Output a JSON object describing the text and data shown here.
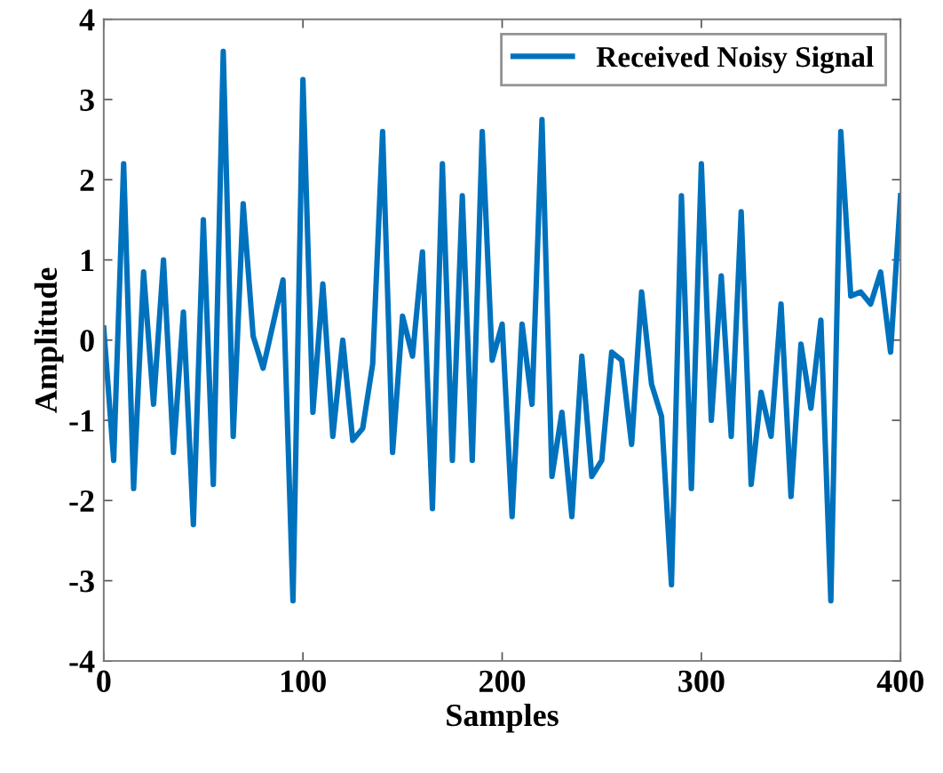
{
  "chart_data": {
    "type": "line",
    "xlabel": "Samples",
    "ylabel": "Amplitude",
    "x": [
      0,
      5,
      10,
      15,
      20,
      25,
      30,
      35,
      40,
      45,
      50,
      55,
      60,
      65,
      70,
      75,
      80,
      85,
      90,
      95,
      100,
      105,
      110,
      115,
      120,
      125,
      130,
      135,
      140,
      145,
      150,
      155,
      160,
      165,
      170,
      175,
      180,
      185,
      190,
      195,
      200,
      205,
      210,
      215,
      220,
      225,
      230,
      235,
      240,
      245,
      250,
      255,
      260,
      265,
      270,
      275,
      280,
      285,
      290,
      295,
      300,
      305,
      310,
      315,
      320,
      325,
      330,
      335,
      340,
      345,
      350,
      355,
      360,
      365,
      370,
      375,
      380,
      385,
      390,
      395,
      400
    ],
    "series": [
      {
        "name": "Received Noisy Signal",
        "color": "#0072bd",
        "values": [
          0.15,
          -1.5,
          2.2,
          -1.85,
          0.85,
          -0.8,
          1.0,
          -1.4,
          0.35,
          -2.3,
          1.5,
          -1.8,
          3.6,
          -1.2,
          1.7,
          0.05,
          -0.35,
          0.2,
          0.75,
          -3.25,
          3.25,
          -0.9,
          0.7,
          -1.2,
          0.0,
          -1.25,
          -1.1,
          -0.3,
          2.6,
          -1.4,
          0.3,
          -0.2,
          1.1,
          -2.1,
          2.2,
          -1.5,
          1.8,
          -1.5,
          2.6,
          -0.25,
          0.2,
          -2.2,
          0.2,
          -0.8,
          2.75,
          -1.7,
          -0.9,
          -2.2,
          -0.2,
          -1.7,
          -1.5,
          -0.15,
          -0.25,
          -1.3,
          0.6,
          -0.55,
          -0.95,
          -3.05,
          1.8,
          -1.85,
          2.2,
          -1.0,
          0.8,
          -1.2,
          1.6,
          -1.8,
          -0.65,
          -1.2,
          0.45,
          -1.95,
          -0.05,
          -0.85,
          0.25,
          -3.25,
          2.6,
          0.55,
          0.6,
          0.45,
          0.85,
          -0.15,
          1.8
        ]
      }
    ],
    "xlim": [
      0,
      400
    ],
    "xticks": [
      0,
      100,
      200,
      300,
      400
    ],
    "ylim": [
      -4,
      4
    ],
    "yticks": [
      -4,
      -3,
      -2,
      -1,
      0,
      1,
      2,
      3,
      4
    ],
    "grid": false,
    "legend": "top right",
    "marker": "none",
    "line_style": "solid"
  }
}
